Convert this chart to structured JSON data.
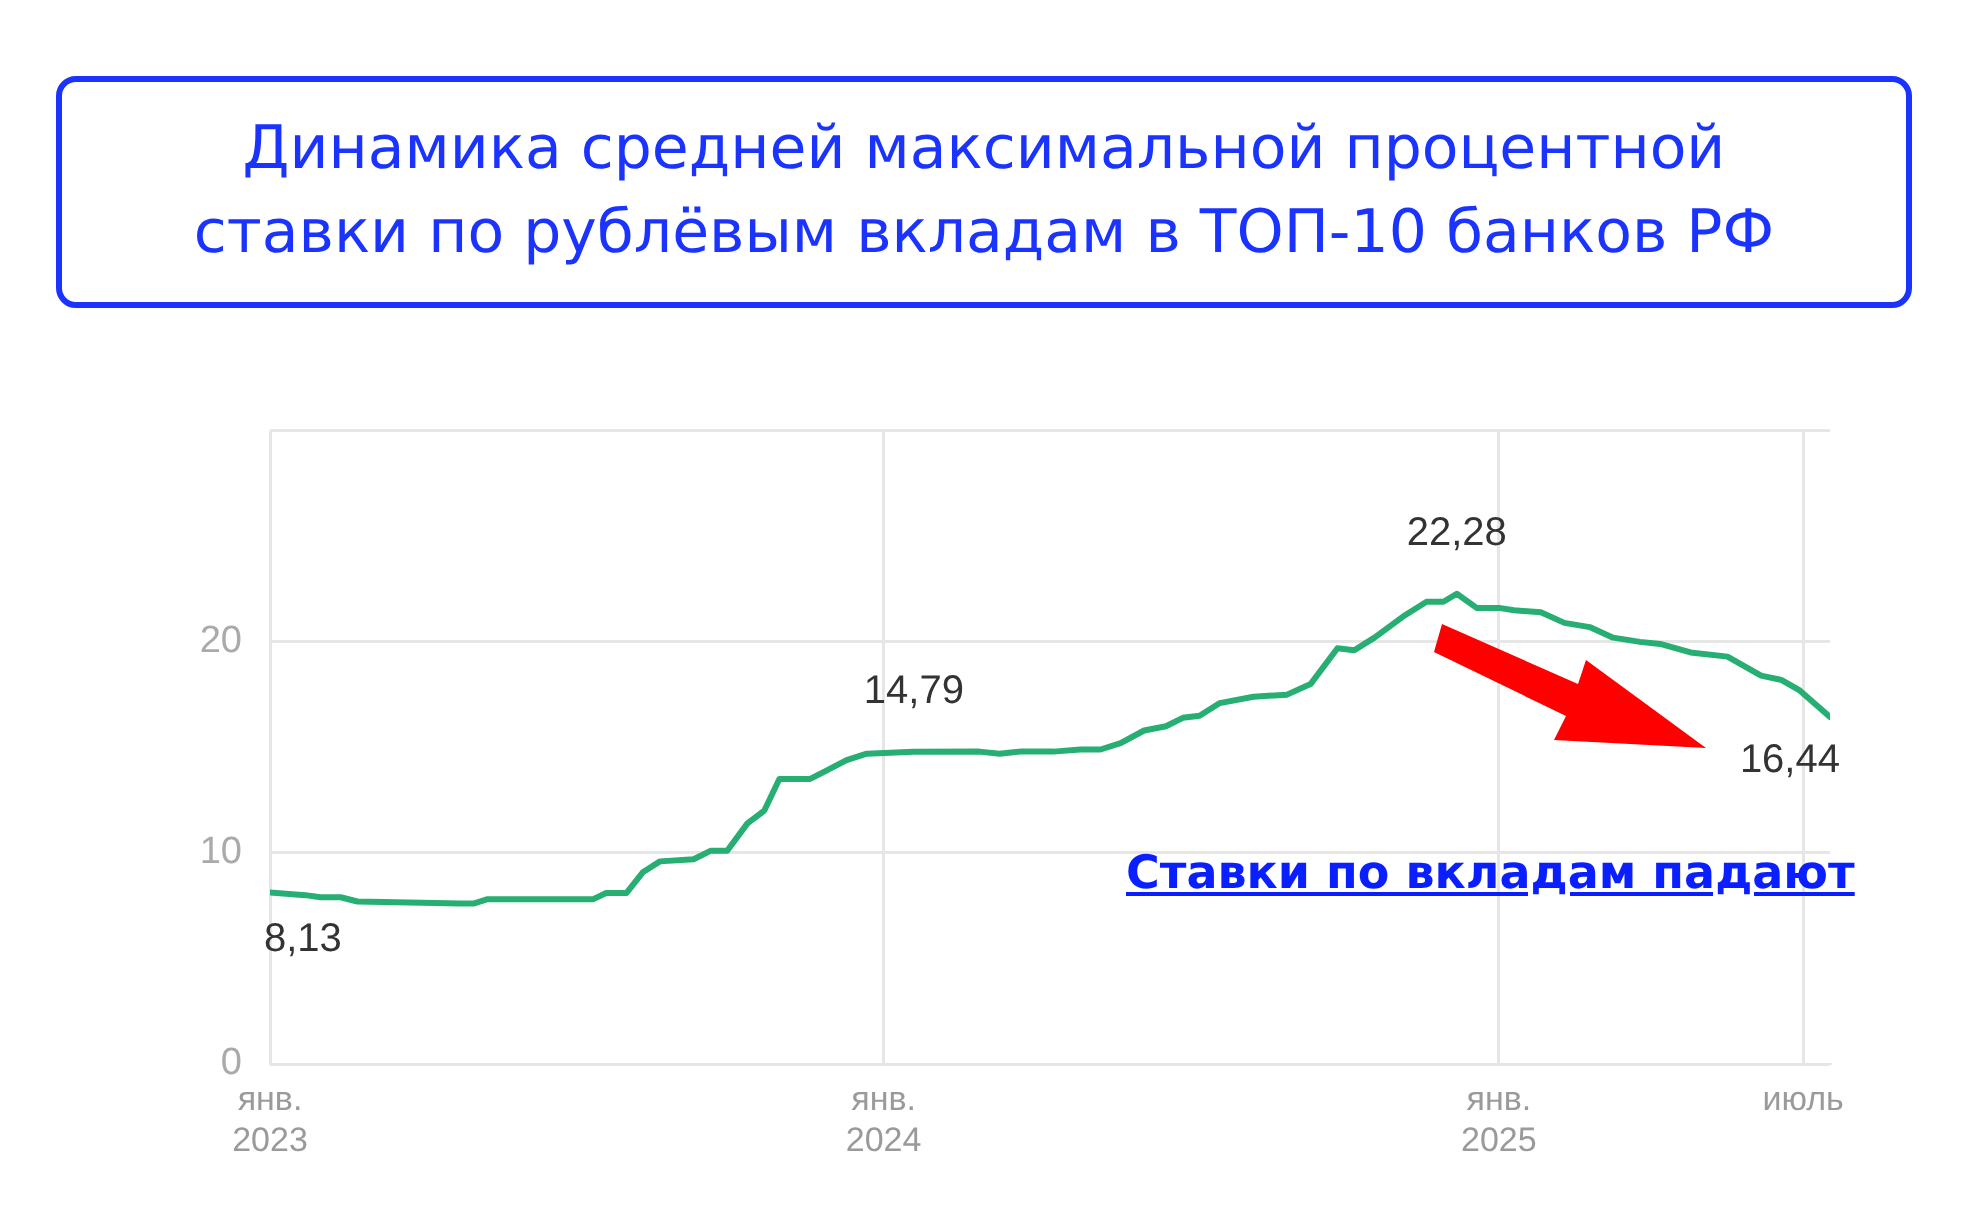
{
  "chart_data": {
    "type": "line",
    "title": "Динамика средней максимальной процентной ставки по рублёвым вкладам в ТОП-10 банков РФ",
    "x": [
      "2023-01-01",
      "2023-01-22",
      "2023-01-31",
      "2023-02-12",
      "2023-02-22",
      "2023-04-24",
      "2023-05-02",
      "2023-05-10",
      "2023-06-03",
      "2023-07-12",
      "2023-07-20",
      "2023-08-01",
      "2023-08-11",
      "2023-08-21",
      "2023-09-10",
      "2023-09-20",
      "2023-09-30",
      "2023-10-12",
      "2023-10-22",
      "2023-10-31",
      "2023-11-18",
      "2023-11-28",
      "2023-12-10",
      "2023-12-22",
      "2024-01-19",
      "2024-02-27",
      "2024-03-10",
      "2024-03-22",
      "2024-04-11",
      "2024-04-27",
      "2024-05-09",
      "2024-05-21",
      "2024-06-04",
      "2024-06-17",
      "2024-06-27",
      "2024-07-07",
      "2024-07-19",
      "2024-08-08",
      "2024-08-28",
      "2024-09-11",
      "2024-09-27",
      "2024-10-07",
      "2024-10-19",
      "2024-11-05",
      "2024-11-19",
      "2024-11-29",
      "2024-12-07",
      "2024-12-19",
      "2025-01-02",
      "2025-01-10",
      "2025-01-26",
      "2025-02-09",
      "2025-02-24",
      "2025-03-10",
      "2025-03-26",
      "2025-04-07",
      "2025-04-25",
      "2025-05-17",
      "2025-06-06",
      "2025-06-18",
      "2025-06-29",
      "2025-07-17"
    ],
    "series": [
      {
        "color": "#27ae72",
        "values": [
          8.13,
          8.0,
          7.9,
          7.9,
          7.7,
          7.6,
          7.6,
          7.8,
          7.8,
          7.8,
          8.1,
          8.1,
          9.1,
          9.6,
          9.7,
          10.1,
          10.1,
          11.4,
          12.0,
          13.5,
          13.5,
          13.9,
          14.4,
          14.7,
          14.79,
          14.8,
          14.7,
          14.8,
          14.8,
          14.9,
          14.9,
          15.2,
          15.8,
          16.0,
          16.4,
          16.5,
          17.1,
          17.4,
          17.5,
          18.0,
          19.7,
          19.6,
          20.2,
          21.2,
          21.9,
          21.9,
          22.28,
          21.6,
          21.6,
          21.5,
          21.4,
          20.9,
          20.7,
          20.2,
          20.0,
          19.9,
          19.5,
          19.3,
          18.4,
          18.2,
          17.7,
          16.44
        ]
      }
    ],
    "xlim": [
      "2023-01-01",
      "2025-07-17"
    ],
    "xticks": [
      {
        "value": "2023-01-01",
        "label": "янв. 2023"
      },
      {
        "value": "2024-01-01",
        "label": "янв. 2024"
      },
      {
        "value": "2025-01-01",
        "label": "янв. 2025"
      },
      {
        "value": "2025-07-01",
        "label": "июль"
      }
    ],
    "ylim": [
      0,
      30
    ],
    "yticks": [
      0,
      10,
      20,
      {
        "value": 30,
        "label": null
      }
    ],
    "grid": true,
    "marker": "none",
    "line_style": "solid",
    "annotations": [
      {
        "text": "8,13",
        "x": "2023-01-01",
        "y": 8.13
      },
      {
        "text": "14,79",
        "x": "2024-01-19",
        "y": 14.79
      },
      {
        "text": "22,28",
        "x": "2024-12-07",
        "y": 22.28
      },
      {
        "text": "16,44",
        "x": "2025-07-17",
        "y": 16.44
      },
      "Ставки по вкладам падают"
    ]
  }
}
